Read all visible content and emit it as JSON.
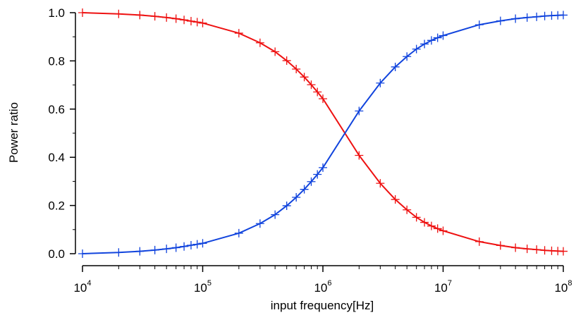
{
  "chart_data": {
    "type": "line",
    "title": "",
    "xlabel": "input frequency[Hz]",
    "ylabel": "Power ratio",
    "xscale": "log",
    "xlim": [
      10000,
      100000000
    ],
    "ylim": [
      0,
      1
    ],
    "grid": false,
    "legend": "none",
    "x_ticks": [
      {
        "value": 10000,
        "base": "10",
        "exp": "4"
      },
      {
        "value": 100000,
        "base": "10",
        "exp": "5"
      },
      {
        "value": 1000000,
        "base": "10",
        "exp": "6"
      },
      {
        "value": 10000000,
        "base": "10",
        "exp": "7"
      },
      {
        "value": 100000000,
        "base": "10",
        "exp": "8"
      }
    ],
    "y_ticks": [
      {
        "value": 0,
        "label": "0.0"
      },
      {
        "value": 0.2,
        "label": "0.2"
      },
      {
        "value": 0.4,
        "label": "0.4"
      },
      {
        "value": 0.6,
        "label": "0.6"
      },
      {
        "value": 0.8,
        "label": "0.8"
      },
      {
        "value": 1.0,
        "label": "1.0"
      }
    ],
    "x": [
      10000,
      20000,
      30000,
      40000,
      50000,
      60000,
      70000,
      80000,
      90000,
      100000,
      200000,
      300000,
      400000,
      500000,
      600000,
      700000,
      800000,
      900000,
      1000000,
      2000000,
      3000000,
      4000000,
      5000000,
      6000000,
      7000000,
      8000000,
      9000000,
      10000000,
      20000000,
      30000000,
      40000000,
      50000000,
      60000000,
      70000000,
      80000000,
      90000000,
      100000000
    ],
    "series": [
      {
        "color": "#ee1111",
        "marker": "plus",
        "values": [
          1.0,
          0.995,
          0.99,
          0.985,
          0.98,
          0.975,
          0.97,
          0.965,
          0.961,
          0.957,
          0.915,
          0.875,
          0.838,
          0.801,
          0.766,
          0.733,
          0.701,
          0.671,
          0.643,
          0.408,
          0.292,
          0.225,
          0.182,
          0.151,
          0.13,
          0.115,
          0.104,
          0.095,
          0.05,
          0.034,
          0.025,
          0.02,
          0.017,
          0.014,
          0.012,
          0.011,
          0.01
        ]
      },
      {
        "color": "#1144dd",
        "marker": "plus",
        "values": [
          0.0,
          0.005,
          0.01,
          0.015,
          0.02,
          0.025,
          0.03,
          0.035,
          0.039,
          0.043,
          0.085,
          0.125,
          0.162,
          0.199,
          0.234,
          0.267,
          0.299,
          0.329,
          0.357,
          0.592,
          0.708,
          0.775,
          0.818,
          0.849,
          0.87,
          0.885,
          0.896,
          0.905,
          0.95,
          0.966,
          0.975,
          0.98,
          0.983,
          0.986,
          0.988,
          0.989,
          0.99
        ]
      }
    ]
  }
}
